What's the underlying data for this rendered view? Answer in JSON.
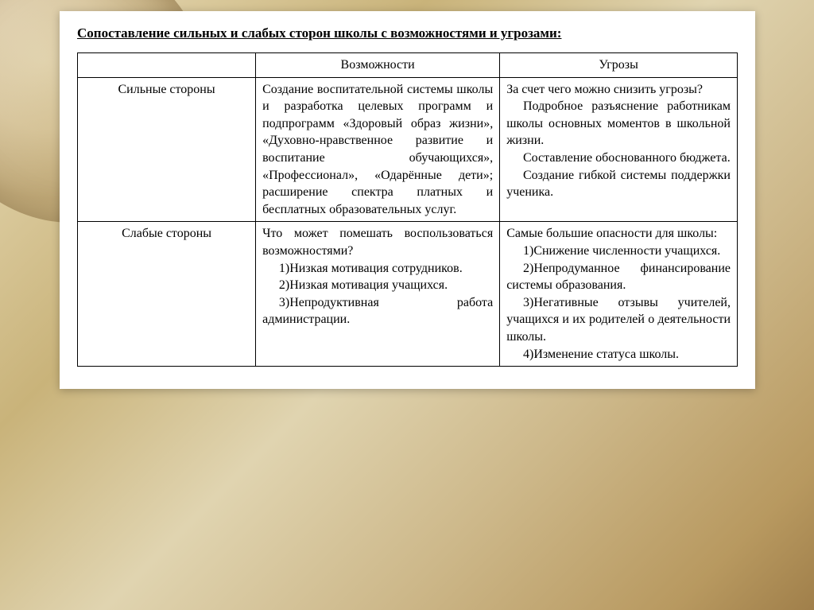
{
  "title": "Сопоставление сильных и слабых сторон школы с возможностями и угрозами:",
  "table": {
    "headers": {
      "blank": "",
      "opportunities": "Возможности",
      "threats": "Угрозы"
    },
    "rows": [
      {
        "label": "Сильные стороны",
        "opportunities": "Создание воспитательной системы школы и разработка целевых программ и подпрограмм «Здоровый образ жизни», «Духовно-нравственное развитие и воспитание обучающихся», «Профессионал», «Одарённые дети»; расширение спектра платных и бесплатных образовательных услуг.",
        "threats": {
          "p1": "За счет чего можно снизить угрозы?",
          "p2": "Подробное разъяснение работникам школы основных моментов в школьной жизни.",
          "p3": "Составление обоснованного бюджета.",
          "p4": "Создание гибкой системы поддержки ученика."
        }
      },
      {
        "label": "Слабые стороны",
        "opportunities": {
          "p1": "Что может помешать воспользоваться возможностями?",
          "p2": "1)Низкая мотивация сотрудников.",
          "p3": "2)Низкая мотивация учащихся.",
          "p4": "3)Непродуктивная работа администрации."
        },
        "threats": {
          "p1": "Самые большие опасности для школы:",
          "p2": "1)Снижение численности учащихся.",
          "p3": "2)Непродуманное финансирование системы образования.",
          "p4": "3)Негативные отзывы учителей, учащихся и их родителей о деятельности школы.",
          "p5": "4)Изменение статуса школы."
        }
      }
    ]
  },
  "style": {
    "card_bg": "#ffffff",
    "border_color": "#000000",
    "title_fontsize": 17,
    "cell_fontsize": 16
  }
}
